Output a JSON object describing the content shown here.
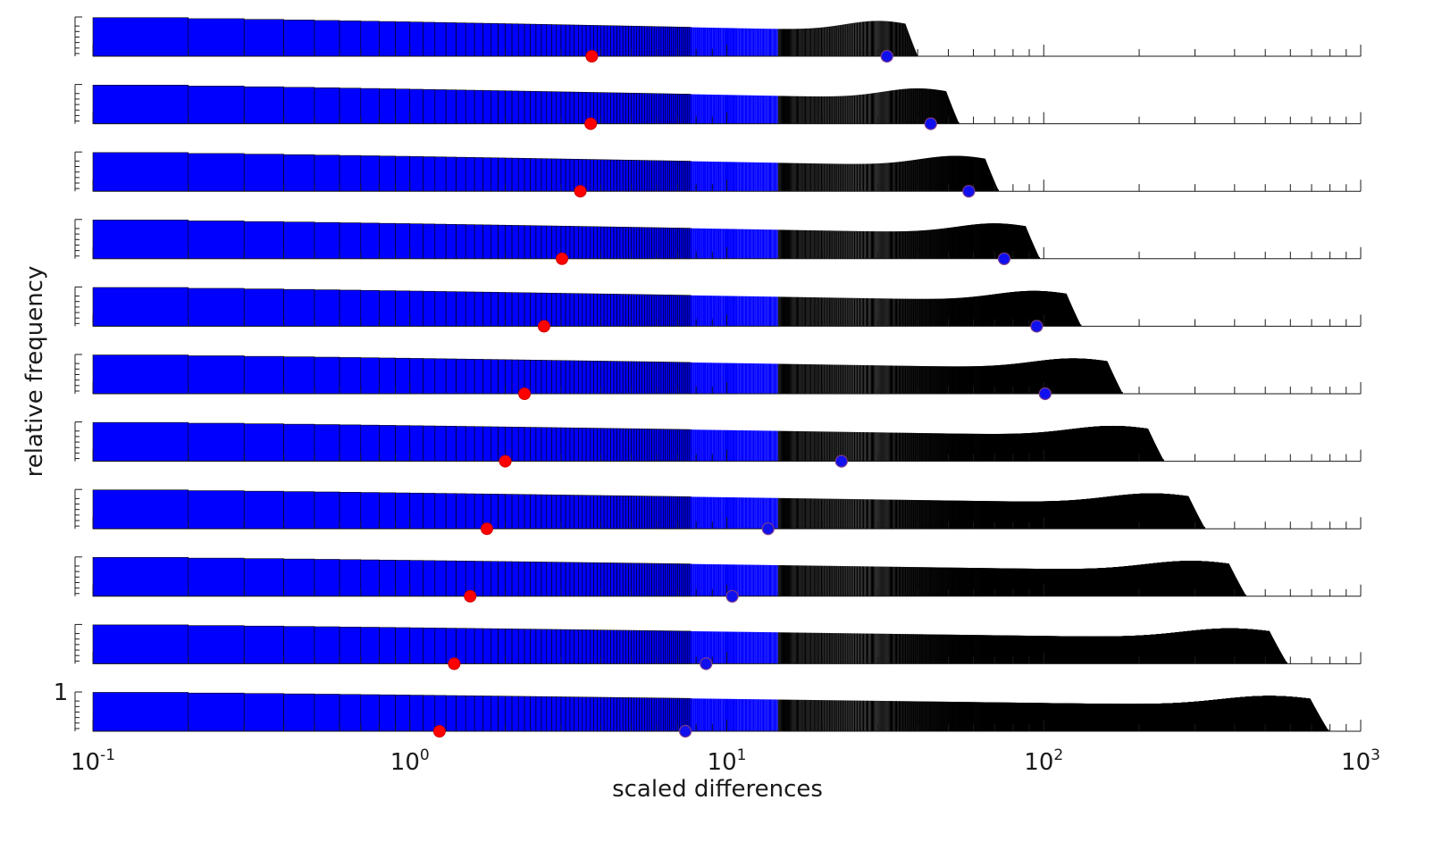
{
  "chart_data": {
    "type": "bar",
    "panel_count": 11,
    "xscale": "log",
    "xlim": [
      0.1,
      1000
    ],
    "xlabel": "scaled differences",
    "ylabel": "relative frequency",
    "xticks": [
      {
        "value": 0.1,
        "base": "10",
        "exp": "-1"
      },
      {
        "value": 1,
        "base": "10",
        "exp": "0"
      },
      {
        "value": 10,
        "base": "10",
        "exp": "1"
      },
      {
        "value": 100,
        "base": "10",
        "exp": "2"
      },
      {
        "value": 1000,
        "base": "10",
        "exp": "3"
      }
    ],
    "yticks_bottom_panel": [
      "1"
    ],
    "colors": {
      "bars_low": "#0000ff",
      "bars_high": "#000000",
      "bar_edge": "#000000",
      "marker_red": "#ff0000",
      "marker_blue": "#1010ee",
      "axis": "#1a1a1a"
    },
    "color_split_x": 14.5,
    "bin_width": 0.1,
    "panels": [
      {
        "max_x": 40,
        "red_marker_x": 3.75,
        "blue_marker_x": 32
      },
      {
        "max_x": 54,
        "red_marker_x": 3.72,
        "blue_marker_x": 44
      },
      {
        "max_x": 72,
        "red_marker_x": 3.45,
        "blue_marker_x": 58
      },
      {
        "max_x": 97,
        "red_marker_x": 3.02,
        "blue_marker_x": 75
      },
      {
        "max_x": 131,
        "red_marker_x": 2.65,
        "blue_marker_x": 95
      },
      {
        "max_x": 177,
        "red_marker_x": 2.3,
        "blue_marker_x": 101
      },
      {
        "max_x": 239,
        "red_marker_x": 2.0,
        "blue_marker_x": 23
      },
      {
        "max_x": 322,
        "red_marker_x": 1.75,
        "blue_marker_x": 13.5
      },
      {
        "max_x": 434,
        "red_marker_x": 1.55,
        "blue_marker_x": 10.4
      },
      {
        "max_x": 585,
        "red_marker_x": 1.38,
        "blue_marker_x": 8.6
      },
      {
        "max_x": 790,
        "red_marker_x": 1.24,
        "blue_marker_x": 7.4
      }
    ]
  }
}
